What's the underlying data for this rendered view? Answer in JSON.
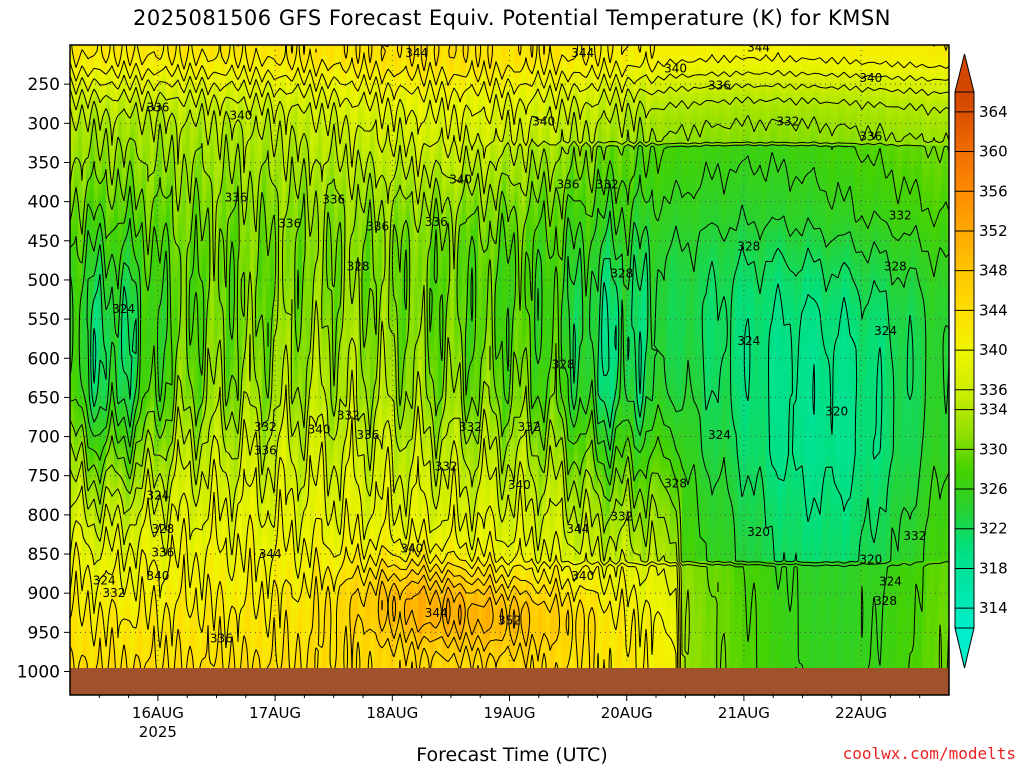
{
  "title": "2025081506 GFS Forecast Equiv. Potential Temperature (K) for KMSN",
  "xlabel": "Forecast Time (UTC)",
  "credit": "coolwx.com/modelts",
  "colors": {
    "ground": "#a0522d",
    "contour": "#000000",
    "grid": "#555555"
  },
  "chart_data": {
    "type": "heatmap",
    "title": "2025081506 GFS Forecast Equiv. Potential Temperature (K) for KMSN",
    "xlabel": "Forecast Time (UTC)",
    "ylabel": "",
    "y_scale": "pressure (reversed)",
    "y_ticks": [
      250,
      300,
      350,
      400,
      450,
      500,
      550,
      600,
      650,
      700,
      750,
      800,
      850,
      900,
      950,
      1000
    ],
    "x_ticks": [
      {
        "label": "16AUG",
        "sub": "2025",
        "hour": 18
      },
      {
        "label": "17AUG",
        "sub": "",
        "hour": 42
      },
      {
        "label": "18AUG",
        "sub": "",
        "hour": 66
      },
      {
        "label": "19AUG",
        "sub": "",
        "hour": 90
      },
      {
        "label": "20AUG",
        "sub": "",
        "hour": 114
      },
      {
        "label": "21AUG",
        "sub": "",
        "hour": 138
      },
      {
        "label": "22AUG",
        "sub": "",
        "hour": 162
      }
    ],
    "x_range_hours": [
      0,
      180
    ],
    "y_range": [
      200,
      1030
    ],
    "colorbar": {
      "ticks": [
        314,
        318,
        322,
        326,
        330,
        334,
        336,
        340,
        344,
        348,
        352,
        356,
        360,
        364
      ],
      "range": [
        312,
        366
      ]
    },
    "grid": true,
    "contour_interval": 2,
    "contour_labels": [
      {
        "t": 18,
        "p": 280,
        "v": "336"
      },
      {
        "t": 35,
        "p": 290,
        "v": "340"
      },
      {
        "t": 71,
        "p": 210,
        "v": "344"
      },
      {
        "t": 105,
        "p": 210,
        "v": "344"
      },
      {
        "t": 124,
        "p": 230,
        "v": "340"
      },
      {
        "t": 133,
        "p": 252,
        "v": "336"
      },
      {
        "t": 164,
        "p": 242,
        "v": "340"
      },
      {
        "t": 141,
        "p": 203,
        "v": "344"
      },
      {
        "t": 97,
        "p": 298,
        "v": "340"
      },
      {
        "t": 147,
        "p": 298,
        "v": "332"
      },
      {
        "t": 164,
        "p": 317,
        "v": "336"
      },
      {
        "t": 80,
        "p": 372,
        "v": "340"
      },
      {
        "t": 102,
        "p": 378,
        "v": "336"
      },
      {
        "t": 110,
        "p": 378,
        "v": "332"
      },
      {
        "t": 34,
        "p": 395,
        "v": "336"
      },
      {
        "t": 54,
        "p": 397,
        "v": "336"
      },
      {
        "t": 45,
        "p": 428,
        "v": "336"
      },
      {
        "t": 63,
        "p": 432,
        "v": "336"
      },
      {
        "t": 75,
        "p": 426,
        "v": "336"
      },
      {
        "t": 139,
        "p": 457,
        "v": "328"
      },
      {
        "t": 170,
        "p": 418,
        "v": "332"
      },
      {
        "t": 59,
        "p": 483,
        "v": "328"
      },
      {
        "t": 169,
        "p": 483,
        "v": "328"
      },
      {
        "t": 113,
        "p": 492,
        "v": "328"
      },
      {
        "t": 11,
        "p": 537,
        "v": "324"
      },
      {
        "t": 139,
        "p": 578,
        "v": "324"
      },
      {
        "t": 167,
        "p": 565,
        "v": "324"
      },
      {
        "t": 101,
        "p": 608,
        "v": "328"
      },
      {
        "t": 40,
        "p": 688,
        "v": "332"
      },
      {
        "t": 40,
        "p": 718,
        "v": "336"
      },
      {
        "t": 51,
        "p": 691,
        "v": "340"
      },
      {
        "t": 57,
        "p": 673,
        "v": "332"
      },
      {
        "t": 61,
        "p": 698,
        "v": "336"
      },
      {
        "t": 77,
        "p": 738,
        "v": "332"
      },
      {
        "t": 82,
        "p": 688,
        "v": "332"
      },
      {
        "t": 94,
        "p": 688,
        "v": "332"
      },
      {
        "t": 92,
        "p": 762,
        "v": "340"
      },
      {
        "t": 133,
        "p": 698,
        "v": "324"
      },
      {
        "t": 157,
        "p": 668,
        "v": "320"
      },
      {
        "t": 124,
        "p": 760,
        "v": "328"
      },
      {
        "t": 113,
        "p": 802,
        "v": "332"
      },
      {
        "t": 104,
        "p": 818,
        "v": "344"
      },
      {
        "t": 105,
        "p": 878,
        "v": "340"
      },
      {
        "t": 18,
        "p": 775,
        "v": "324"
      },
      {
        "t": 19,
        "p": 818,
        "v": "328"
      },
      {
        "t": 19,
        "p": 848,
        "v": "336"
      },
      {
        "t": 18,
        "p": 878,
        "v": "340"
      },
      {
        "t": 7,
        "p": 884,
        "v": "324"
      },
      {
        "t": 9,
        "p": 900,
        "v": "332"
      },
      {
        "t": 41,
        "p": 850,
        "v": "344"
      },
      {
        "t": 70,
        "p": 843,
        "v": "340"
      },
      {
        "t": 75,
        "p": 925,
        "v": "344"
      },
      {
        "t": 90,
        "p": 935,
        "v": "352"
      },
      {
        "t": 31,
        "p": 958,
        "v": "336"
      },
      {
        "t": 141,
        "p": 822,
        "v": "320"
      },
      {
        "t": 164,
        "p": 857,
        "v": "320"
      },
      {
        "t": 173,
        "p": 827,
        "v": "332"
      },
      {
        "t": 168,
        "p": 885,
        "v": "324"
      },
      {
        "t": 167,
        "p": 910,
        "v": "328"
      }
    ]
  }
}
